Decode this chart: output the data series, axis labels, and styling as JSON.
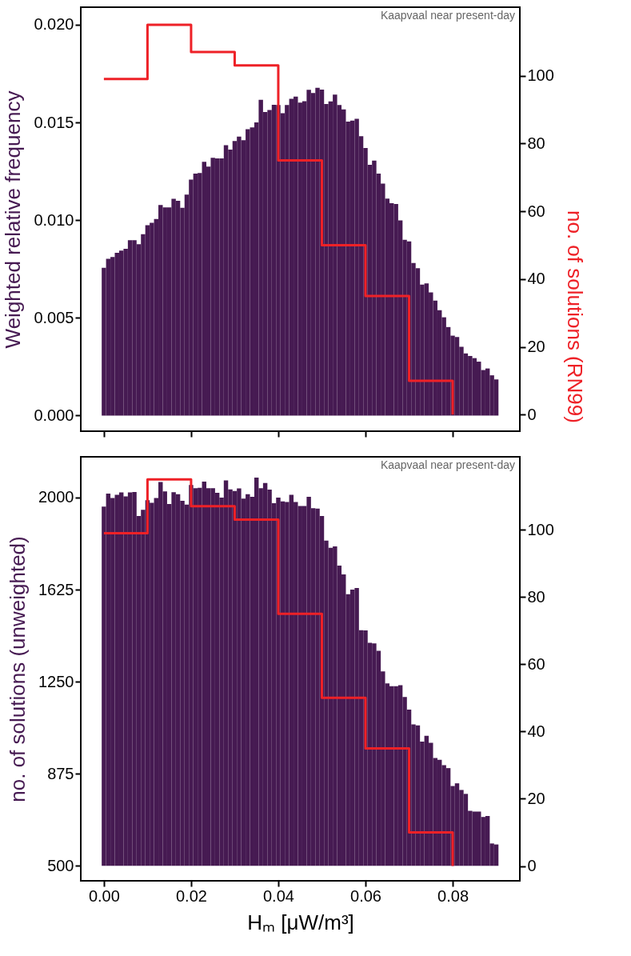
{
  "chart_data": [
    {
      "type": "histogram",
      "ylabel": "Weighted relative frequency",
      "y2label": "no. of solutions (RN99)",
      "annotations": [
        "Kaapvaal near present-day"
      ],
      "tick_labels": "y",
      "bins": [
        -0.0005,
        0.0005,
        0.0015,
        0.0025,
        0.0035,
        0.0045,
        0.0055,
        0.0065,
        0.0075,
        0.0085,
        0.0095,
        0.0105,
        0.0115,
        0.0125,
        0.0135,
        0.0145,
        0.0155,
        0.0165,
        0.0175,
        0.0185,
        0.0195,
        0.0205,
        0.0215,
        0.0225,
        0.0235,
        0.0245,
        0.0255,
        0.0265,
        0.0275,
        0.0285,
        0.0295,
        0.0305,
        0.0315,
        0.0325,
        0.0335,
        0.0345,
        0.0355,
        0.0365,
        0.0375,
        0.0385,
        0.0395,
        0.0405,
        0.0415,
        0.0425,
        0.0435,
        0.0445,
        0.0455,
        0.0465,
        0.0475,
        0.0485,
        0.0495,
        0.0505,
        0.0515,
        0.0525,
        0.0535,
        0.0545,
        0.0555,
        0.0565,
        0.0575,
        0.0585,
        0.0595,
        0.0605,
        0.0615,
        0.0625,
        0.0635,
        0.0645,
        0.0655,
        0.0665,
        0.0675,
        0.0685,
        0.0695,
        0.0705,
        0.0715,
        0.0725,
        0.0735,
        0.0745,
        0.0755,
        0.0765,
        0.0775,
        0.0785,
        0.0795,
        0.0805,
        0.0815,
        0.0825,
        0.0835,
        0.0845,
        0.0855,
        0.0865,
        0.0875,
        0.0885,
        0.0895,
        0.0905
      ],
      "series": [
        {
          "color": "#461a52",
          "values": [
            0.00756,
            0.00802,
            0.00812,
            0.00833,
            0.00844,
            0.00854,
            0.00898,
            0.00898,
            0.00877,
            0.00928,
            0.00974,
            0.00987,
            0.01006,
            0.01078,
            0.01065,
            0.01065,
            0.01109,
            0.01099,
            0.01063,
            0.01131,
            0.01208,
            0.01238,
            0.01241,
            0.01299,
            0.01274,
            0.01319,
            0.01316,
            0.01316,
            0.01384,
            0.01361,
            0.01405,
            0.01428,
            0.01409,
            0.01466,
            0.01475,
            0.015,
            0.01616,
            0.01554,
            0.01564,
            0.01591,
            0.01589,
            0.01548,
            0.01589,
            0.01621,
            0.01632,
            0.01602,
            0.01609,
            0.01667,
            0.01651,
            0.01678,
            0.01668,
            0.01595,
            0.01608,
            0.01643,
            0.01589,
            0.01567,
            0.01505,
            0.0151,
            0.01519,
            0.0143,
            0.01369,
            0.01283,
            0.01305,
            0.01238,
            0.01187,
            0.0111,
            0.01087,
            0.01083,
            0.00999,
            0.009,
            0.00891,
            0.00781,
            0.00754,
            0.0067,
            0.00676,
            0.0063,
            0.00588,
            0.00539,
            0.00503,
            0.00453,
            0.00409,
            0.00402,
            0.00352,
            0.00318,
            0.00305,
            0.00294,
            0.00276,
            0.00233,
            0.00241,
            0.00206,
            0.00185
          ]
        },
        {
          "type": "step",
          "axis": "y2",
          "color": "#ee2127",
          "x": [
            0,
            0.01,
            0.02,
            0.03,
            0.04,
            0.05,
            0.06,
            0.07,
            0.08
          ],
          "values": [
            99,
            115,
            107,
            103,
            75,
            50,
            35,
            10,
            0
          ]
        }
      ],
      "xlim": [
        -0.0053,
        0.0954
      ],
      "ylim": [
        -0.0008,
        0.0209
      ],
      "yticks": [
        {
          "value": 0,
          "label": "0.000"
        },
        {
          "value": 0.005,
          "label": "0.005"
        },
        {
          "value": 0.01,
          "label": "0.010"
        },
        {
          "value": 0.015,
          "label": "0.015"
        },
        {
          "value": 0.02,
          "label": "0.020"
        }
      ],
      "y2lim": [
        -4.9,
        120.2
      ],
      "y2ticks": [
        0,
        20,
        40,
        60,
        80,
        100
      ],
      "xticks": [
        0,
        0.02,
        0.04,
        0.06,
        0.08
      ]
    },
    {
      "type": "histogram",
      "ylabel": "no. of solutions (unweighted)",
      "xlabel": "Hₘ [μW/m³]",
      "annotations": [
        "Kaapvaal near present-day"
      ],
      "bins": [
        -0.0005,
        0.0005,
        0.0015,
        0.0025,
        0.0035,
        0.0045,
        0.0055,
        0.0065,
        0.0075,
        0.0085,
        0.0095,
        0.0105,
        0.0115,
        0.0125,
        0.0135,
        0.0145,
        0.0155,
        0.0165,
        0.0175,
        0.0185,
        0.0195,
        0.0205,
        0.0215,
        0.0225,
        0.0235,
        0.0245,
        0.0255,
        0.0265,
        0.0275,
        0.0285,
        0.0295,
        0.0305,
        0.0315,
        0.0325,
        0.0335,
        0.0345,
        0.0355,
        0.0365,
        0.0375,
        0.0385,
        0.0395,
        0.0405,
        0.0415,
        0.0425,
        0.0435,
        0.0445,
        0.0455,
        0.0465,
        0.0475,
        0.0485,
        0.0495,
        0.0505,
        0.0515,
        0.0525,
        0.0535,
        0.0545,
        0.0555,
        0.0565,
        0.0575,
        0.0585,
        0.0595,
        0.0605,
        0.0615,
        0.0625,
        0.0635,
        0.0645,
        0.0655,
        0.0665,
        0.0675,
        0.0685,
        0.0695,
        0.0705,
        0.0715,
        0.0725,
        0.0735,
        0.0745,
        0.0755,
        0.0765,
        0.0775,
        0.0785,
        0.0795,
        0.0805,
        0.0815,
        0.0825,
        0.0835,
        0.0845,
        0.0855,
        0.0865,
        0.0875,
        0.0885,
        0.0895,
        0.0905
      ],
      "series": [
        {
          "color": "#461a52",
          "values": [
            1963,
            2016,
            1998,
            2011,
            2021,
            2005,
            2021,
            2023,
            1925,
            1950,
            1989,
            1979,
            1998,
            2063,
            2025,
            1974,
            2022,
            2014,
            1987,
            1971,
            2051,
            2038,
            2040,
            2065,
            2038,
            2038,
            2019,
            2000,
            2070,
            2033,
            2027,
            2037,
            1996,
            2014,
            2003,
            2081,
            2038,
            2059,
            2032,
            1977,
            2000,
            1984,
            1982,
            2011,
            1982,
            1966,
            1966,
            2003,
            1957,
            1955,
            1925,
            1825,
            1795,
            1801,
            1723,
            1687,
            1606,
            1625,
            1632,
            1460,
            1459,
            1408,
            1406,
            1376,
            1292,
            1243,
            1232,
            1232,
            1236,
            1188,
            1136,
            1076,
            1072,
            1006,
            1030,
            1001,
            939,
            932,
            910,
            898,
            825,
            836,
            809,
            793,
            724,
            721,
            721,
            699,
            703,
            591,
            587
          ]
        },
        {
          "type": "step",
          "axis": "y2",
          "color": "#ee2127",
          "x": [
            0,
            0.01,
            0.02,
            0.03,
            0.04,
            0.05,
            0.06,
            0.07,
            0.08
          ],
          "values": [
            99,
            115,
            107,
            103,
            75,
            50,
            35,
            10,
            0
          ]
        }
      ],
      "xlim": [
        -0.0053,
        0.0954
      ],
      "xticks": [
        {
          "value": 0,
          "label": "0.00"
        },
        {
          "value": 0.02,
          "label": "0.02"
        },
        {
          "value": 0.04,
          "label": "0.04"
        },
        {
          "value": 0.06,
          "label": "0.06"
        },
        {
          "value": 0.08,
          "label": "0.08"
        }
      ],
      "ylim": [
        439,
        2166
      ],
      "yticks": [
        500,
        875,
        1250,
        1625,
        2000
      ],
      "y2lim": [
        -4.4,
        121.7
      ],
      "y2ticks": [
        0,
        20,
        40,
        60,
        80,
        100
      ]
    }
  ]
}
